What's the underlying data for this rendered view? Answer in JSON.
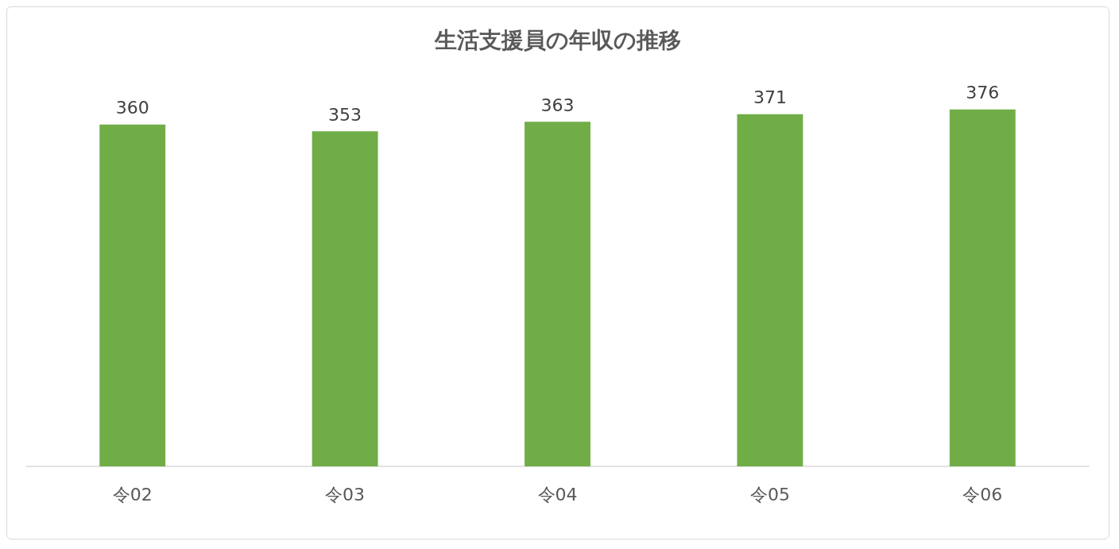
{
  "chart_data": {
    "type": "bar",
    "title": "生活支援員の年収の推移",
    "categories": [
      "令02",
      "令03",
      "令04",
      "令05",
      "令06"
    ],
    "values": [
      360,
      353,
      363,
      371,
      376
    ],
    "color": "#70ad47",
    "data_labels": true
  }
}
